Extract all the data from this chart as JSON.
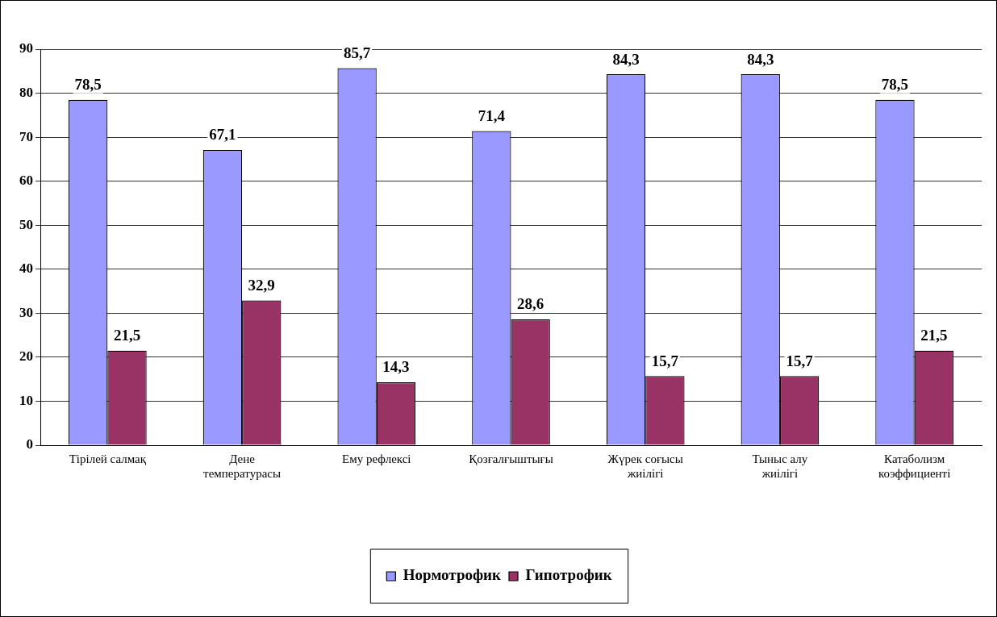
{
  "chart_data": {
    "type": "bar",
    "categories": [
      "Тірілей салмақ",
      "Дене температурасы",
      "Ему рефлексі",
      "Қозғалғыштығы",
      "Жүрек соғысы жиілігі",
      "Тыныс алу жиілігі",
      "Катаболизм коэффициенті"
    ],
    "series": [
      {
        "name": "Нормотрофик",
        "color": "#9999ff",
        "values": [
          78.5,
          67.1,
          85.7,
          71.4,
          84.3,
          84.3,
          78.5
        ],
        "value_labels": [
          "78,5",
          "67,1",
          "85,7",
          "71,4",
          "84,3",
          "84,3",
          "78,5"
        ]
      },
      {
        "name": "Гипотрофик",
        "color": "#993366",
        "values": [
          21.5,
          32.9,
          14.3,
          28.6,
          15.7,
          15.7,
          21.5
        ],
        "value_labels": [
          "21,5",
          "32,9",
          "14,3",
          "28,6",
          "15,7",
          "15,7",
          "21,5"
        ]
      }
    ],
    "ylim": [
      0,
      90
    ],
    "yticks": [
      0,
      10,
      20,
      30,
      40,
      50,
      60,
      70,
      80,
      90
    ],
    "grid": "y",
    "legend": "bottom"
  }
}
